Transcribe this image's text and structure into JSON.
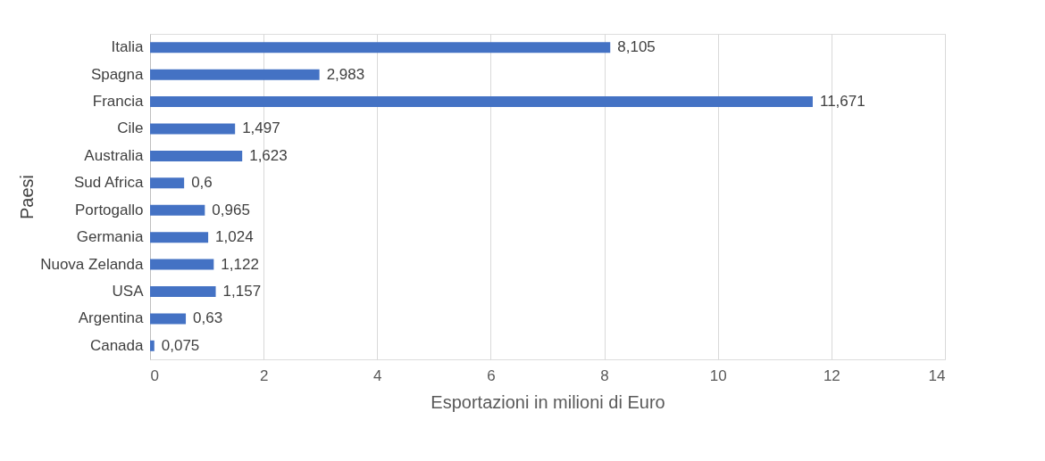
{
  "chart_data": {
    "type": "bar",
    "orientation": "horizontal",
    "xlabel": "Esportazioni in milioni di Euro",
    "ylabel": "Paesi",
    "categories": [
      "Italia",
      "Spagna",
      "Francia",
      "Cile",
      "Australia",
      "Sud Africa",
      "Portogallo",
      "Germania",
      "Nuova Zelanda",
      "USA",
      "Argentina",
      "Canada"
    ],
    "values": [
      8.105,
      2.983,
      11.671,
      1.497,
      1.623,
      0.6,
      0.965,
      1.024,
      1.122,
      1.157,
      0.63,
      0.075
    ],
    "value_labels": [
      "8,105",
      "2,983",
      "11,671",
      "1,497",
      "1,623",
      "0,6",
      "0,965",
      "1,024",
      "1,122",
      "1,157",
      "0,63",
      "0,075"
    ],
    "color": "#4472c4",
    "xlim": [
      0,
      14
    ],
    "xticks": [
      0,
      2,
      4,
      6,
      8,
      10,
      12,
      14
    ],
    "grid": "x"
  }
}
